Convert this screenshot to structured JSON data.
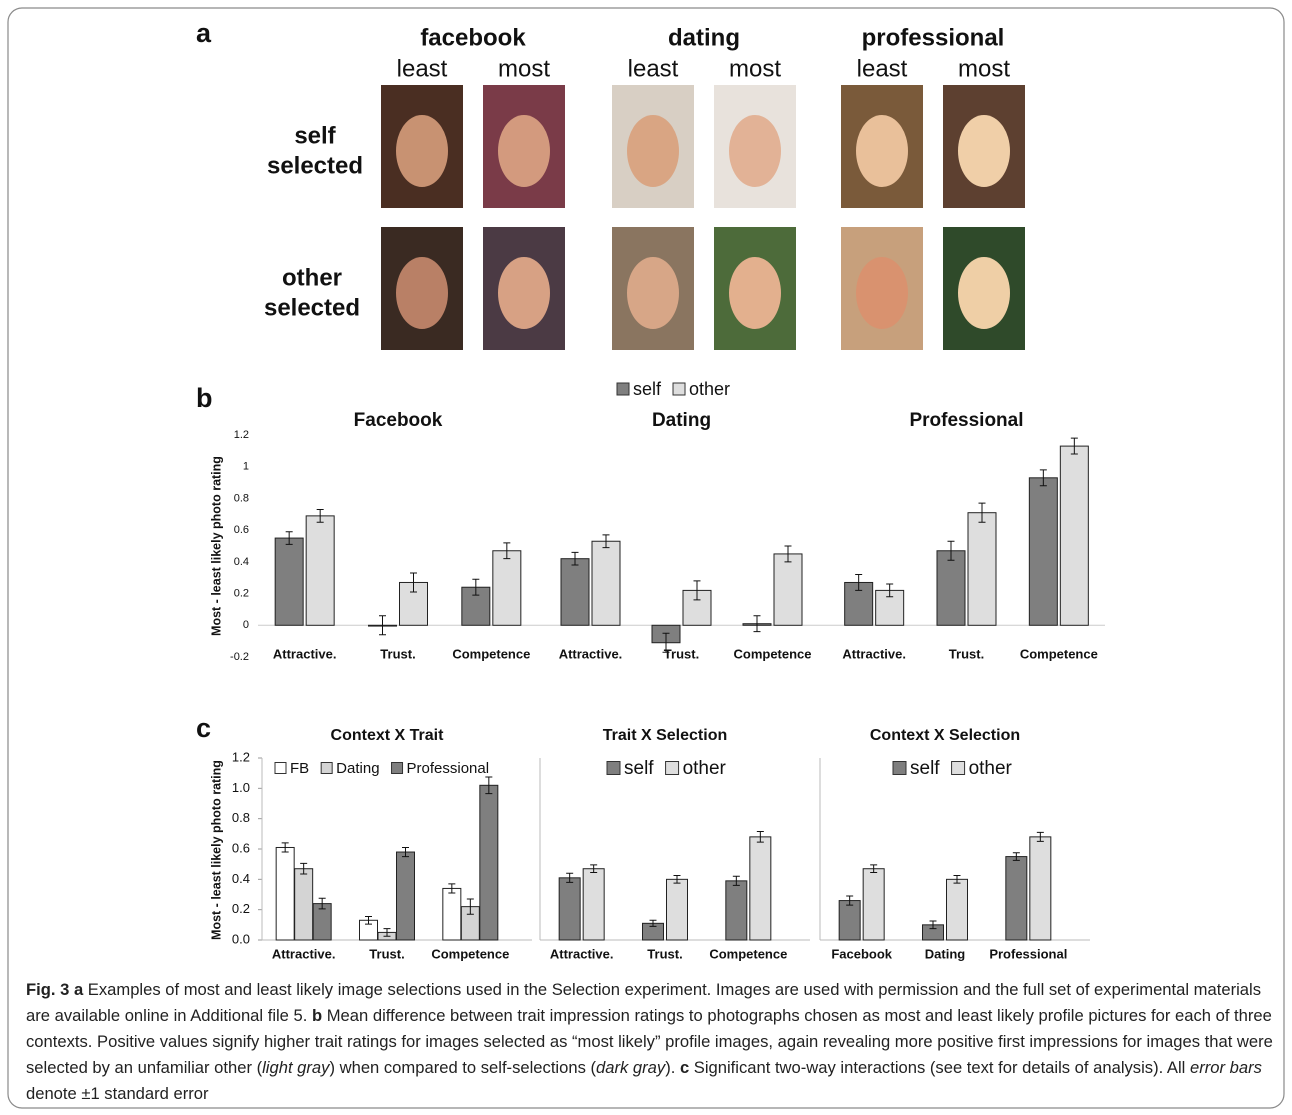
{
  "panel_a": {
    "label": "a",
    "contexts": [
      {
        "title": "facebook",
        "columns": [
          "least",
          "most"
        ]
      },
      {
        "title": "dating",
        "columns": [
          "least",
          "most"
        ]
      },
      {
        "title": "professional",
        "columns": [
          "least",
          "most"
        ]
      }
    ],
    "rows": [
      [
        "self",
        "selected"
      ],
      [
        "other",
        "selected"
      ]
    ]
  },
  "chart_data": [
    {
      "type": "bar",
      "panel": "b",
      "ylabel": "Most - least likely photo rating",
      "ylim": [
        -0.2,
        1.2
      ],
      "yticks": [
        -0.2,
        0,
        0.2,
        0.4,
        0.6,
        0.8,
        1,
        1.2
      ],
      "legend": [
        {
          "name": "self",
          "color": "#7f7f7f"
        },
        {
          "name": "other",
          "color": "#dedede"
        }
      ],
      "charts": [
        {
          "title": "Facebook",
          "categories": [
            "Attractive.",
            "Trust.",
            "Competence"
          ],
          "series": [
            {
              "values": [
                0.55,
                0.0,
                0.24
              ],
              "errors": [
                0.04,
                0.06,
                0.05
              ]
            },
            {
              "values": [
                0.69,
                0.27,
                0.47
              ],
              "errors": [
                0.04,
                0.06,
                0.05
              ]
            }
          ]
        },
        {
          "title": "Dating",
          "categories": [
            "Attractive.",
            "Trust.",
            "Competence"
          ],
          "series": [
            {
              "values": [
                0.42,
                -0.11,
                0.01
              ],
              "errors": [
                0.04,
                0.06,
                0.05
              ]
            },
            {
              "values": [
                0.53,
                0.22,
                0.45
              ],
              "errors": [
                0.04,
                0.06,
                0.05
              ]
            }
          ]
        },
        {
          "title": "Professional",
          "categories": [
            "Attractive.",
            "Trust.",
            "Competence"
          ],
          "series": [
            {
              "values": [
                0.27,
                0.47,
                0.93
              ],
              "errors": [
                0.05,
                0.06,
                0.05
              ]
            },
            {
              "values": [
                0.22,
                0.71,
                1.13
              ],
              "errors": [
                0.04,
                0.06,
                0.05
              ]
            }
          ]
        }
      ]
    },
    {
      "type": "bar",
      "panel": "c",
      "ylabel": "Most - least likely photo rating",
      "ylim": [
        0,
        1.2
      ],
      "yticks": [
        {
          "value": 0,
          "label": "0.0"
        },
        0.2,
        0.4,
        0.6,
        0.8,
        {
          "value": 1,
          "label": "1.0"
        },
        1.2
      ],
      "charts": [
        {
          "title": "Context X Trait",
          "categories": [
            "Attractive.",
            "Trust.",
            "Competence"
          ],
          "legend": [
            {
              "name": "FB",
              "color": "#ffffff"
            },
            {
              "name": "Dating",
              "color": "#d4d4d4"
            },
            {
              "name": "Professional",
              "color": "#7f7f7f"
            }
          ],
          "series": [
            {
              "values": [
                0.61,
                0.13,
                0.34
              ],
              "errors": [
                0.03,
                0.025,
                0.03
              ]
            },
            {
              "values": [
                0.47,
                0.05,
                0.22
              ],
              "errors": [
                0.035,
                0.025,
                0.05
              ]
            },
            {
              "values": [
                0.24,
                0.58,
                1.02
              ],
              "errors": [
                0.035,
                0.03,
                0.055
              ]
            }
          ]
        },
        {
          "title": "Trait X Selection",
          "categories": [
            "Attractive.",
            "Trust.",
            "Competence"
          ],
          "legend": [
            {
              "name": "self",
              "color": "#7f7f7f"
            },
            {
              "name": "other",
              "color": "#dedede"
            }
          ],
          "series": [
            {
              "values": [
                0.41,
                0.11,
                0.39
              ],
              "errors": [
                0.03,
                0.02,
                0.03
              ]
            },
            {
              "values": [
                0.47,
                0.4,
                0.68
              ],
              "errors": [
                0.025,
                0.025,
                0.035
              ]
            }
          ]
        },
        {
          "title": "Context X Selection",
          "categories": [
            "Facebook",
            "Dating",
            "Professional"
          ],
          "legend": [
            {
              "name": "self",
              "color": "#7f7f7f"
            },
            {
              "name": "other",
              "color": "#dedede"
            }
          ],
          "series": [
            {
              "values": [
                0.26,
                0.1,
                0.55
              ],
              "errors": [
                0.03,
                0.025,
                0.025
              ]
            },
            {
              "values": [
                0.47,
                0.4,
                0.68
              ],
              "errors": [
                0.025,
                0.025,
                0.03
              ]
            }
          ]
        }
      ]
    }
  ],
  "caption": [
    "Fig. 3 a",
    " Examples of most and least likely image selections used in the Selection experiment. Images are used with permission and the full set of experimental materials are available online in Additional file 5. ",
    "b",
    " Mean difference between trait impression ratings to photographs chosen as most and least likely profile pictures for each of three contexts. Positive values signify higher trait ratings for images selected as “most likely” profile images, again revealing more positive first impressions for images that were selected by an unfamiliar other (",
    "light gray",
    ") when compared to self-selections (",
    "dark gray",
    "). ",
    "c",
    " Significant two-way interactions (see text for details of analysis). All ",
    "error bars",
    " denote ±1 standard error"
  ]
}
